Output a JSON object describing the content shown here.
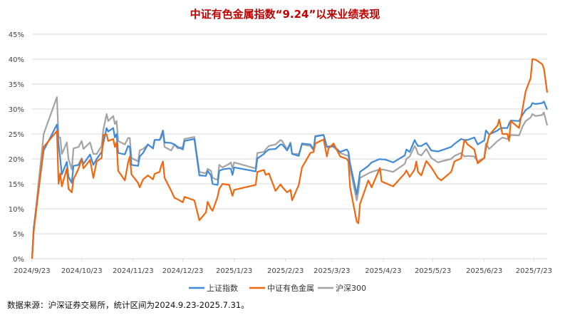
{
  "chart_data": {
    "type": "line",
    "title": "中证有色金属指数“9.24”以来业绩表现",
    "xlabel": "",
    "ylabel": "",
    "ylim": [
      0,
      45
    ],
    "xlim": [
      "2024-09-23",
      "2025-07-31"
    ],
    "y_ticks": [
      "0%",
      "5%",
      "10%",
      "15%",
      "20%",
      "25%",
      "30%",
      "35%",
      "40%",
      "45%"
    ],
    "x_ticks": [
      "2024/9/23",
      "2024/10/23",
      "2024/11/23",
      "2024/12/23",
      "2025/1/23",
      "2025/2/23",
      "2025/3/23",
      "2025/4/23",
      "2025/5/23",
      "2025/6/23",
      "2025/7/23"
    ],
    "grid": true,
    "legend_position": "bottom",
    "x": [
      "2024-09-23",
      "2024-09-24",
      "2024-09-30",
      "2024-10-08",
      "2024-10-09",
      "2024-10-10",
      "2024-10-11",
      "2024-10-14",
      "2024-10-15",
      "2024-10-17",
      "2024-10-18",
      "2024-10-21",
      "2024-10-23",
      "2024-10-24",
      "2024-10-28",
      "2024-10-30",
      "2024-11-01",
      "2024-11-04",
      "2024-11-05",
      "2024-11-07",
      "2024-11-08",
      "2024-11-11",
      "2024-11-12",
      "2024-11-13",
      "2024-11-14",
      "2024-11-18",
      "2024-11-20",
      "2024-11-21",
      "2024-11-22",
      "2024-11-26",
      "2024-11-27",
      "2024-11-29",
      "2024-12-02",
      "2024-12-05",
      "2024-12-06",
      "2024-12-09",
      "2024-12-10",
      "2024-12-11",
      "2024-12-12",
      "2024-12-16",
      "2024-12-18",
      "2024-12-20",
      "2024-12-23",
      "2024-12-24",
      "2024-12-30",
      "2025-01-02",
      "2025-01-06",
      "2025-01-07",
      "2025-01-09",
      "2025-01-10",
      "2025-01-13",
      "2025-01-14",
      "2025-01-16",
      "2025-01-20",
      "2025-01-21",
      "2025-01-22",
      "2025-01-23",
      "2025-02-05",
      "2025-02-06",
      "2025-02-10",
      "2025-02-11",
      "2025-02-13",
      "2025-02-17",
      "2025-02-20",
      "2025-02-21",
      "2025-02-24",
      "2025-02-26",
      "2025-02-27",
      "2025-03-03",
      "2025-03-05",
      "2025-03-10",
      "2025-03-12",
      "2025-03-13",
      "2025-03-18",
      "2025-03-20",
      "2025-03-21",
      "2025-03-24",
      "2025-03-28",
      "2025-04-01",
      "2025-04-02",
      "2025-04-03",
      "2025-04-07",
      "2025-04-08",
      "2025-04-09",
      "2025-04-14",
      "2025-04-16",
      "2025-04-21",
      "2025-04-22",
      "2025-04-24",
      "2025-04-29",
      "2025-05-06",
      "2025-05-07",
      "2025-05-09",
      "2025-05-12",
      "2025-05-13",
      "2025-05-14",
      "2025-05-16",
      "2025-05-19",
      "2025-05-22",
      "2025-05-26",
      "2025-05-28",
      "2025-06-03",
      "2025-06-05",
      "2025-06-09",
      "2025-06-11",
      "2025-06-13",
      "2025-06-17",
      "2025-06-19",
      "2025-06-23",
      "2025-06-24",
      "2025-06-26",
      "2025-07-01",
      "2025-07-02",
      "2025-07-04",
      "2025-07-07",
      "2025-07-08",
      "2025-07-09",
      "2025-07-14",
      "2025-07-16",
      "2025-07-18",
      "2025-07-21",
      "2025-07-22",
      "2025-07-24",
      "2025-07-28",
      "2025-07-29",
      "2025-07-31"
    ],
    "series": [
      {
        "name": "上证指数",
        "color": "#3f8ad8",
        "values": [
          0,
          6.2,
          21.7,
          26.9,
          22.9,
          20.1,
          16.9,
          19.4,
          16.4,
          15.2,
          18.6,
          18.8,
          20.1,
          19.0,
          20.9,
          18.8,
          20.0,
          21.4,
          23.1,
          26.2,
          25.5,
          26.2,
          24.3,
          25.0,
          21.2,
          20.9,
          22.6,
          22.4,
          18.8,
          18.6,
          20.5,
          21.2,
          22.9,
          22.1,
          23.8,
          23.8,
          24.3,
          25.7,
          23.3,
          23.2,
          22.9,
          22.4,
          21.9,
          23.6,
          24.0,
          16.7,
          16.6,
          17.6,
          16.7,
          15.0,
          14.8,
          17.6,
          17.9,
          18.1,
          18.0,
          16.8,
          18.3,
          17.5,
          20.1,
          21.0,
          21.4,
          21.9,
          22.0,
          22.9,
          22.9,
          21.7,
          23.1,
          21.0,
          20.6,
          23.1,
          22.9,
          21.9,
          24.5,
          24.8,
          22.4,
          22.5,
          22.6,
          21.4,
          21.9,
          21.4,
          19.0,
          12.9,
          15.0,
          17.4,
          18.6,
          19.3,
          20.0,
          19.9,
          19.9,
          19.3,
          20.7,
          21.9,
          21.4,
          23.8,
          23.1,
          22.6,
          22.6,
          23.2,
          21.7,
          21.5,
          21.7,
          22.4,
          23.0,
          24.0,
          23.8,
          23.8,
          24.3,
          22.9,
          23.7,
          25.7,
          24.9,
          25.7,
          26.0,
          26.2,
          26.2,
          27.1,
          27.7,
          27.6,
          28.8,
          29.8,
          30.5,
          31.2,
          31.0,
          31.2,
          31.5,
          29.9
        ]
      },
      {
        "name": "中证有色金属",
        "color": "#f0670f",
        "values": [
          0,
          5.5,
          22.4,
          25.6,
          15.0,
          17.1,
          14.5,
          18.1,
          14.0,
          13.3,
          15.9,
          18.0,
          20.0,
          18.1,
          19.8,
          16.2,
          19.5,
          20.2,
          24.8,
          24.9,
          23.6,
          24.0,
          22.4,
          23.3,
          17.6,
          15.7,
          19.3,
          20.5,
          16.9,
          15.2,
          14.3,
          15.9,
          16.7,
          15.9,
          17.0,
          17.4,
          18.6,
          19.5,
          16.2,
          13.6,
          12.2,
          11.9,
          11.3,
          12.4,
          11.7,
          7.7,
          9.3,
          11.4,
          10.0,
          9.6,
          12.4,
          14.0,
          15.0,
          14.8,
          13.7,
          12.6,
          13.8,
          14.8,
          17.4,
          17.8,
          16.8,
          17.1,
          13.6,
          14.9,
          14.4,
          13.3,
          13.8,
          11.7,
          14.8,
          18.3,
          21.2,
          21.4,
          23.1,
          23.9,
          20.5,
          22.1,
          23.1,
          20.5,
          20.0,
          19.5,
          14.3,
          7.4,
          7.1,
          11.0,
          15.7,
          14.3,
          18.2,
          15.5,
          15.2,
          14.5,
          17.1,
          17.7,
          16.4,
          17.9,
          19.5,
          17.4,
          16.7,
          19.6,
          18.3,
          16.2,
          15.7,
          17.4,
          19.5,
          20.1,
          23.8,
          22.9,
          21.9,
          19.1,
          20.2,
          22.1,
          24.8,
          26.7,
          27.9,
          25.0,
          25.0,
          23.6,
          27.6,
          26.2,
          29.8,
          33.6,
          36.2,
          40.0,
          39.9,
          39.0,
          38.1,
          33.3
        ]
      },
      {
        "name": "沪深300",
        "color": "#a3a3a3",
        "values": [
          0,
          5.7,
          25.0,
          32.4,
          24.3,
          24.3,
          21.0,
          23.3,
          20.0,
          17.9,
          22.1,
          22.4,
          23.6,
          22.0,
          23.3,
          21.0,
          21.0,
          22.6,
          25.8,
          29.0,
          27.6,
          28.6,
          27.0,
          27.6,
          23.6,
          22.9,
          24.2,
          24.2,
          20.2,
          19.5,
          21.7,
          22.0,
          22.9,
          22.1,
          23.8,
          23.8,
          24.8,
          25.7,
          22.4,
          21.7,
          22.9,
          22.1,
          22.4,
          24.0,
          24.4,
          17.4,
          17.1,
          18.0,
          17.6,
          16.2,
          15.8,
          18.8,
          18.3,
          19.0,
          19.3,
          18.1,
          19.3,
          18.1,
          21.2,
          21.4,
          21.9,
          22.6,
          22.9,
          23.8,
          23.6,
          21.9,
          23.3,
          21.0,
          21.0,
          22.9,
          22.6,
          21.7,
          24.6,
          24.8,
          22.4,
          22.4,
          22.4,
          21.2,
          20.7,
          20.7,
          18.1,
          11.7,
          13.5,
          16.2,
          17.1,
          17.4,
          17.9,
          17.9,
          17.8,
          17.4,
          19.0,
          20.0,
          20.5,
          22.6,
          22.0,
          21.0,
          20.7,
          22.0,
          20.2,
          19.3,
          19.5,
          20.0,
          20.6,
          21.2,
          20.5,
          20.6,
          20.5,
          19.5,
          20.2,
          23.1,
          22.0,
          23.6,
          23.8,
          24.3,
          24.0,
          24.0,
          24.8,
          24.7,
          26.4,
          27.6,
          28.3,
          29.0,
          28.6,
          28.8,
          29.3,
          26.7
        ]
      }
    ],
    "title_color": "#c00000"
  },
  "source_note": "数据来源：沪深证券交易所，统计区间为2024.9.23-2025.7.31。"
}
